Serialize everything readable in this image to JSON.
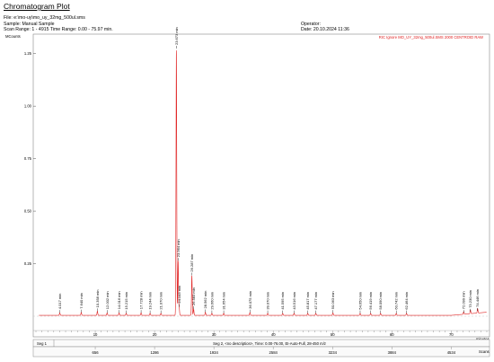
{
  "header": {
    "title": "Chromatogram Plot",
    "file": "File: e:\\mo-uy\\mo_uy_32mg_500ul.sms",
    "sample": "Sample: Manual Sample",
    "scan_range": "Scan Range: 1 - 4915 Time Range: 0.00 - 75.97 min.",
    "operator": "Operator:",
    "date": "Date: 20.10.2024 11:36"
  },
  "chart_data": {
    "type": "line",
    "ylabel": "MCounts",
    "xlabel": "minutes",
    "xlim": [
      0,
      76
    ],
    "ylim": [
      0,
      1.3
    ],
    "xticks": [
      10,
      20,
      30,
      40,
      50,
      60,
      70
    ],
    "yticks": [
      0.25,
      0.5,
      0.75,
      1.0,
      1.25
    ],
    "ytick_labels": [
      "0.25",
      "0.50",
      "0.75",
      "1.00",
      "1.25"
    ],
    "legend": "RIC Ignore MO_UY_32mg_500ul.SMS 2000 CENTROID RAW",
    "legend_color": "#e02020",
    "trace_color": "#e02020",
    "peaks": [
      {
        "rt": 4.017,
        "label": "4.017 min",
        "height": 0.012
      },
      {
        "rt": 7.64,
        "label": "7.640 min",
        "height": 0.014
      },
      {
        "rt": 10.358,
        "label": "10.358 min",
        "height": 0.02
      },
      {
        "rt": 12.002,
        "label": "12.002 min",
        "height": 0.012
      },
      {
        "rt": 14.016,
        "label": "14.016 min",
        "height": 0.012
      },
      {
        "rt": 15.215,
        "label": "15.215 min",
        "height": 0.01
      },
      {
        "rt": 17.728,
        "label": "17.728 min",
        "height": 0.012
      },
      {
        "rt": 19.244,
        "label": "19.244 min",
        "height": 0.01
      },
      {
        "rt": 21.07,
        "label": "21.070 min",
        "height": 0.01
      },
      {
        "rt": 23.673,
        "label": "23.673 min",
        "height": 1.27
      },
      {
        "rt": 23.964,
        "label": "23.964 min",
        "height": 0.26
      },
      {
        "rt": 24.143,
        "label": "24.143 min",
        "height": 0.04
      },
      {
        "rt": 26.287,
        "label": "26.287 min",
        "height": 0.19
      },
      {
        "rt": 26.583,
        "label": "26.583 min",
        "height": 0.03
      },
      {
        "rt": 28.562,
        "label": "28.562 min",
        "height": 0.015
      },
      {
        "rt": 29.66,
        "label": "29.660 min",
        "height": 0.01
      },
      {
        "rt": 31.654,
        "label": "31.654 min",
        "height": 0.01
      },
      {
        "rt": 36.075,
        "label": "36.075 min",
        "height": 0.014
      },
      {
        "rt": 39.07,
        "label": "39.070 min",
        "height": 0.01
      },
      {
        "rt": 41.595,
        "label": "41.595 min",
        "height": 0.01
      },
      {
        "rt": 43.516,
        "label": "43.516 min",
        "height": 0.01
      },
      {
        "rt": 45.817,
        "label": "45.817 min",
        "height": 0.01
      },
      {
        "rt": 47.177,
        "label": "47.177 min",
        "height": 0.01
      },
      {
        "rt": 50.063,
        "label": "50.063 min",
        "height": 0.012
      },
      {
        "rt": 54.65,
        "label": "54.650 min",
        "height": 0.01
      },
      {
        "rt": 56.419,
        "label": "56.419 min",
        "height": 0.01
      },
      {
        "rt": 58.09,
        "label": "58.090 min",
        "height": 0.01
      },
      {
        "rt": 60.742,
        "label": "60.742 min",
        "height": 0.01
      },
      {
        "rt": 62.464,
        "label": "62.464 min",
        "height": 0.01
      },
      {
        "rt": 72.099,
        "label": "72.099 min",
        "height": 0.012
      },
      {
        "rt": 73.23,
        "label": "73.230 min",
        "height": 0.018
      },
      {
        "rt": 74.446,
        "label": "74.446 min",
        "height": 0.022
      }
    ]
  },
  "footer": {
    "seg1": "Seg 1",
    "seg2": "Seg 2, <no description>, Time: 0.00-76.00, EI-Auto-Full, 28-450 m/z",
    "scans_label": "Scans",
    "scan_ticks": [
      {
        "rt": 10,
        "label": "656"
      },
      {
        "rt": 20,
        "label": "1286"
      },
      {
        "rt": 30,
        "label": "1934"
      },
      {
        "rt": 40,
        "label": "2584"
      },
      {
        "rt": 50,
        "label": "3234"
      },
      {
        "rt": 60,
        "label": "3884"
      },
      {
        "rt": 70,
        "label": "4534"
      }
    ]
  }
}
